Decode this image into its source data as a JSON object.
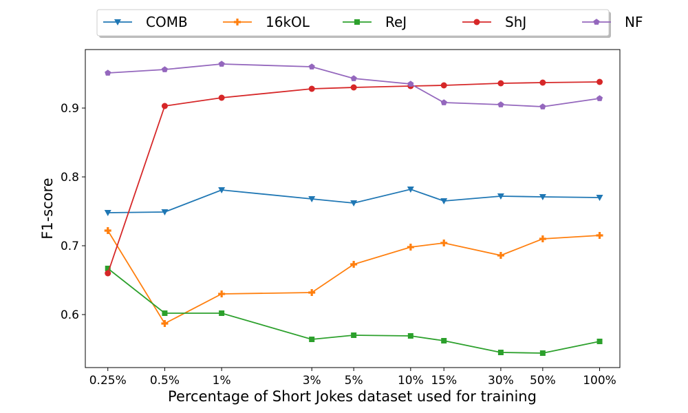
{
  "chart_data": {
    "type": "line",
    "title": "",
    "xlabel": "Percentage of Short Jokes dataset used for training",
    "ylabel": "F1-score",
    "x_scale": "log",
    "x": [
      0.25,
      0.5,
      1,
      3,
      5,
      10,
      15,
      30,
      50,
      100
    ],
    "x_tick_labels": [
      "0.25%",
      "0.5%",
      "1%",
      "3%",
      "5%",
      "10%",
      "15%",
      "30%",
      "50%",
      "100%"
    ],
    "y_ticks": [
      0.6,
      0.7,
      0.8,
      0.9
    ],
    "y_tick_labels": [
      "0.6",
      "0.7",
      "0.8",
      "0.9"
    ],
    "xlim": [
      0.19,
      128
    ],
    "ylim": [
      0.523,
      0.985
    ],
    "grid": false,
    "legend_position": "top-center",
    "series": [
      {
        "name": "COMB",
        "color": "#1f77b4",
        "marker": "triangle-down",
        "values": [
          0.748,
          0.749,
          0.781,
          0.768,
          0.762,
          0.782,
          0.765,
          0.772,
          0.771,
          0.77
        ]
      },
      {
        "name": "16kOL",
        "color": "#ff7f0e",
        "marker": "plus",
        "values": [
          0.722,
          0.587,
          0.63,
          0.632,
          0.673,
          0.698,
          0.704,
          0.686,
          0.71,
          0.715
        ]
      },
      {
        "name": "ReJ",
        "color": "#2ca02c",
        "marker": "square",
        "values": [
          0.667,
          0.602,
          0.602,
          0.564,
          0.57,
          0.569,
          0.562,
          0.545,
          0.544,
          0.561
        ]
      },
      {
        "name": "ShJ",
        "color": "#d62728",
        "marker": "circle",
        "values": [
          0.66,
          0.903,
          0.915,
          0.928,
          0.93,
          0.932,
          0.933,
          0.936,
          0.937,
          0.938
        ]
      },
      {
        "name": "NF",
        "color": "#9467bd",
        "marker": "pentagon",
        "values": [
          0.951,
          0.956,
          0.964,
          0.96,
          0.943,
          0.935,
          0.908,
          0.905,
          0.902,
          0.914
        ]
      }
    ]
  }
}
